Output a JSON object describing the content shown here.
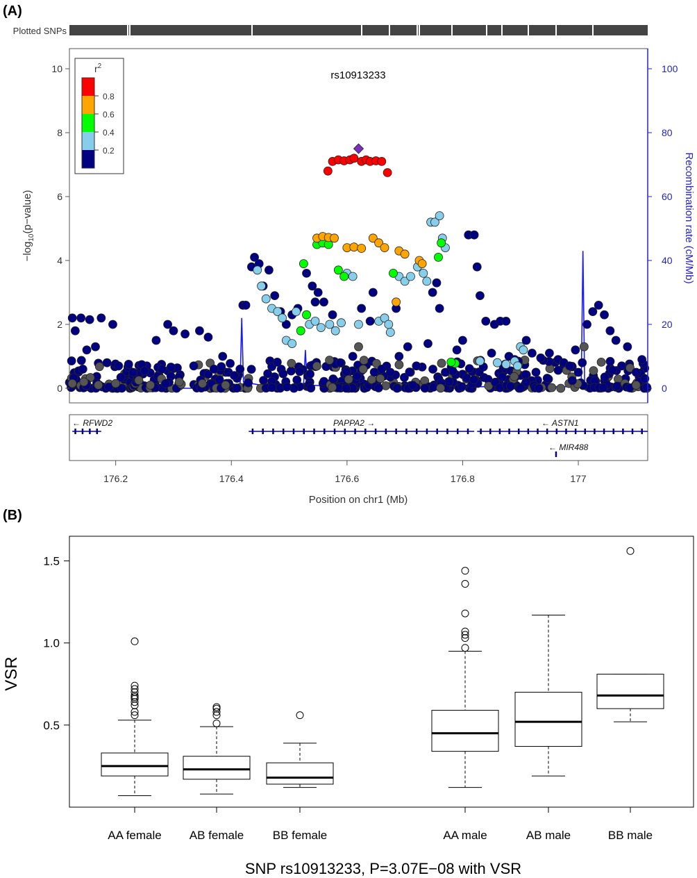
{
  "panel_a": {
    "label": "(A)",
    "plotted_snps_label": "Plotted SNPs",
    "snp_title": "rs10913233",
    "ylabel_left_pre": "−log",
    "ylabel_left_sub": "10",
    "ylabel_left_post": "(p−value)",
    "ylabel_right": "Recombination rate (cM/Mb)",
    "xlabel": "Position on chr1 (Mb)",
    "legend_title": "r",
    "legend_title_sup": "2",
    "legend_ticks": [
      "0.8",
      "0.6",
      "0.4",
      "0.2"
    ],
    "legend_colors": [
      "#ff0000",
      "#ffa500",
      "#00ff00",
      "#87ceeb",
      "#000080"
    ],
    "genes": [
      {
        "name": "RFWD2",
        "arrow": "←"
      },
      {
        "name": "PAPPA2",
        "arrow": "→"
      },
      {
        "name": "ASTN1",
        "arrow": "←"
      },
      {
        "name": "MIR488",
        "arrow": "←"
      }
    ]
  },
  "panel_b": {
    "label": "(B)",
    "ylabel": "VSR",
    "xlabel": "SNP rs10913233, P=3.07E−08 with VSR"
  },
  "chart_data": [
    {
      "type": "scatter",
      "title": "rs10913233",
      "xlabel": "Position on chr1 (Mb)",
      "ylabel": "−log10(p−value)",
      "ylabel_right": "Recombination rate (cM/Mb)",
      "xlim": [
        176.12,
        177.12
      ],
      "ylim": [
        0,
        10
      ],
      "ylim_right": [
        0,
        100
      ],
      "x_ticks": [
        "176.2",
        "176.4",
        "176.6",
        "176.8",
        "177"
      ],
      "x_tick_values": [
        176.2,
        176.4,
        176.6,
        176.8,
        177.0
      ],
      "y_ticks": [
        "0",
        "2",
        "4",
        "6",
        "8",
        "10"
      ],
      "y_right_ticks": [
        "0",
        "20",
        "40",
        "60",
        "80",
        "100"
      ],
      "legend_placement": "top-left",
      "lead_snp": {
        "x": 176.62,
        "y": 7.5
      },
      "series": [
        {
          "r2_bin": "0.8-1.0",
          "color": "#ff0000",
          "points": [
            [
              176.567,
              6.8
            ],
            [
              176.575,
              7.1
            ],
            [
              176.585,
              7.15
            ],
            [
              176.595,
              7.12
            ],
            [
              176.605,
              7.15
            ],
            [
              176.612,
              7.2
            ],
            [
              176.625,
              7.1
            ],
            [
              176.633,
              7.15
            ],
            [
              176.64,
              7.1
            ],
            [
              176.65,
              7.12
            ],
            [
              176.66,
              7.1
            ],
            [
              176.67,
              6.75
            ]
          ]
        },
        {
          "r2_bin": "0.6-0.8",
          "color": "#ffa500",
          "points": [
            [
              176.548,
              4.7
            ],
            [
              176.558,
              4.75
            ],
            [
              176.568,
              4.72
            ],
            [
              176.578,
              4.7
            ],
            [
              176.6,
              4.4
            ],
            [
              176.612,
              4.42
            ],
            [
              176.625,
              4.38
            ],
            [
              176.645,
              4.7
            ],
            [
              176.655,
              4.55
            ],
            [
              176.665,
              4.4
            ],
            [
              176.69,
              4.3
            ],
            [
              176.7,
              4.2
            ],
            [
              176.725,
              4.0
            ],
            [
              176.73,
              3.9
            ],
            [
              176.685,
              2.7
            ]
          ]
        },
        {
          "r2_bin": "0.4-0.6",
          "color": "#00ff00",
          "points": [
            [
              176.525,
              3.9
            ],
            [
              176.548,
              4.5
            ],
            [
              176.558,
              4.55
            ],
            [
              176.568,
              4.5
            ],
            [
              176.585,
              3.7
            ],
            [
              176.595,
              3.5
            ],
            [
              176.68,
              3.6
            ],
            [
              176.758,
              4.1
            ],
            [
              176.763,
              4.55
            ],
            [
              176.53,
              2.3
            ],
            [
              176.52,
              1.8
            ],
            [
              176.787,
              0.78
            ],
            [
              176.78,
              0.82
            ]
          ]
        },
        {
          "r2_bin": "0.2-0.4",
          "color": "#87ceeb",
          "points": [
            [
              176.445,
              3.7
            ],
            [
              176.452,
              3.2
            ],
            [
              176.46,
              2.8
            ],
            [
              176.47,
              2.5
            ],
            [
              176.48,
              2.4
            ],
            [
              176.488,
              2.2
            ],
            [
              176.495,
              1.5
            ],
            [
              176.505,
              1.4
            ],
            [
              176.512,
              2.4
            ],
            [
              176.535,
              2.0
            ],
            [
              176.545,
              2.1
            ],
            [
              176.555,
              1.9
            ],
            [
              176.57,
              2.0
            ],
            [
              176.58,
              1.8
            ],
            [
              176.59,
              2.05
            ],
            [
              176.6,
              3.6
            ],
            [
              176.61,
              3.5
            ],
            [
              176.62,
              2.0
            ],
            [
              176.655,
              2.1
            ],
            [
              176.665,
              2.2
            ],
            [
              176.672,
              2.0
            ],
            [
              176.675,
              1.75
            ],
            [
              176.69,
              3.5
            ],
            [
              176.7,
              3.35
            ],
            [
              176.71,
              3.5
            ],
            [
              176.722,
              3.8
            ],
            [
              176.732,
              3.6
            ],
            [
              176.738,
              3.35
            ],
            [
              176.745,
              5.2
            ],
            [
              176.752,
              5.2
            ],
            [
              176.76,
              5.4
            ],
            [
              176.765,
              4.7
            ],
            [
              176.77,
              4.4
            ],
            [
              176.83,
              0.85
            ],
            [
              176.86,
              0.8
            ],
            [
              176.875,
              0.75
            ],
            [
              176.89,
              0.85
            ],
            [
              176.895,
              0.7
            ],
            [
              176.9,
              1.3
            ],
            [
              176.905,
              1.2
            ]
          ]
        },
        {
          "r2_bin": "0.0-0.2",
          "color": "#000080",
          "points": [
            [
              176.125,
              2.2
            ],
            [
              176.13,
              1.8
            ],
            [
              176.14,
              2.2
            ],
            [
              176.15,
              1.2
            ],
            [
              176.155,
              2.15
            ],
            [
              176.165,
              1.3
            ],
            [
              176.175,
              2.2
            ],
            [
              176.185,
              0.8
            ],
            [
              176.195,
              2.0
            ],
            [
              176.205,
              0.7
            ],
            [
              176.23,
              0.5
            ],
            [
              176.25,
              0.55
            ],
            [
              176.27,
              1.5
            ],
            [
              176.28,
              0.6
            ],
            [
              176.29,
              2.0
            ],
            [
              176.3,
              1.8
            ],
            [
              176.32,
              1.7
            ],
            [
              176.335,
              0.7
            ],
            [
              176.345,
              1.8
            ],
            [
              176.36,
              1.6
            ],
            [
              176.37,
              0.6
            ],
            [
              176.385,
              1.0
            ],
            [
              176.395,
              0.5
            ],
            [
              176.405,
              0.4
            ],
            [
              176.415,
              0.6
            ],
            [
              176.42,
              2.6
            ],
            [
              176.425,
              2.6
            ],
            [
              176.435,
              3.8
            ],
            [
              176.44,
              4.1
            ],
            [
              176.448,
              3.9
            ],
            [
              176.455,
              3.2
            ],
            [
              176.465,
              3.7
            ],
            [
              176.475,
              2.9
            ],
            [
              176.485,
              2.4
            ],
            [
              176.495,
              2.0
            ],
            [
              176.505,
              2.3
            ],
            [
              176.515,
              2.5
            ],
            [
              176.53,
              3.6
            ],
            [
              176.54,
              3.2
            ],
            [
              176.545,
              2.7
            ],
            [
              176.55,
              3.0
            ],
            [
              176.56,
              2.7
            ],
            [
              176.575,
              2.3
            ],
            [
              176.61,
              1.0
            ],
            [
              176.625,
              2.5
            ],
            [
              176.64,
              2.1
            ],
            [
              176.645,
              3.0
            ],
            [
              176.66,
              0.6
            ],
            [
              176.675,
              0.5
            ],
            [
              176.685,
              2.5
            ],
            [
              176.69,
              1.0
            ],
            [
              176.705,
              1.3
            ],
            [
              176.72,
              0.7
            ],
            [
              176.74,
              1.4
            ],
            [
              176.748,
              3.0
            ],
            [
              176.755,
              3.3
            ],
            [
              176.76,
              2.5
            ],
            [
              176.77,
              0.5
            ],
            [
              176.79,
              1.2
            ],
            [
              176.8,
              1.5
            ],
            [
              176.81,
              4.8
            ],
            [
              176.82,
              4.8
            ],
            [
              176.825,
              3.8
            ],
            [
              176.83,
              2.9
            ],
            [
              176.84,
              2.1
            ],
            [
              176.85,
              1.1
            ],
            [
              176.855,
              2.0
            ],
            [
              176.865,
              2.1
            ],
            [
              176.875,
              2.1
            ],
            [
              176.88,
              1.0
            ],
            [
              176.89,
              0.9
            ],
            [
              176.91,
              1.5
            ],
            [
              176.92,
              1.1
            ],
            [
              176.935,
              0.95
            ],
            [
              176.95,
              1.1
            ],
            [
              176.965,
              0.9
            ],
            [
              176.975,
              0.8
            ],
            [
              176.985,
              0.7
            ],
            [
              176.995,
              1.2
            ],
            [
              177.0,
              0.5
            ],
            [
              177.015,
              2.0
            ],
            [
              177.025,
              2.4
            ],
            [
              177.035,
              2.6
            ],
            [
              177.045,
              2.3
            ],
            [
              177.055,
              1.8
            ],
            [
              177.065,
              1.5
            ],
            [
              177.075,
              0.7
            ],
            [
              177.085,
              1.3
            ],
            [
              177.1,
              0.5
            ],
            [
              177.11,
              0.9
            ],
            [
              177.115,
              0.3
            ]
          ]
        },
        {
          "r2_bin": "NA",
          "color": "#555555",
          "points": [
            [
              176.125,
              0.15
            ],
            [
              176.145,
              0.2
            ],
            [
              176.17,
              0.1
            ],
            [
              176.2,
              0.15
            ],
            [
              176.24,
              0.25
            ],
            [
              176.26,
              0.1
            ],
            [
              176.31,
              0.2
            ],
            [
              176.35,
              0.15
            ],
            [
              176.39,
              0.1
            ],
            [
              176.62,
              1.3
            ],
            [
              177.01,
              1.3
            ],
            [
              177.1,
              0.1
            ]
          ]
        }
      ],
      "recombination_peaks": [
        [
          176.12,
          0
        ],
        [
          176.415,
          0
        ],
        [
          176.418,
          22
        ],
        [
          176.421,
          2
        ],
        [
          176.45,
          1
        ],
        [
          176.47,
          0.5
        ],
        [
          176.525,
          1.5
        ],
        [
          176.528,
          12
        ],
        [
          176.531,
          1
        ],
        [
          176.6,
          0.5
        ],
        [
          176.615,
          0.5
        ],
        [
          176.618,
          8
        ],
        [
          176.621,
          0.3
        ],
        [
          176.7,
          0.5
        ],
        [
          176.8,
          0.5
        ],
        [
          176.9,
          0.5
        ],
        [
          177.005,
          0.5
        ],
        [
          177.008,
          43
        ],
        [
          177.011,
          1
        ],
        [
          177.12,
          0.5
        ]
      ],
      "genes": [
        {
          "name": "RFWD2",
          "start": 176.125,
          "end": 176.175,
          "strand": "-",
          "row": 1
        },
        {
          "name": "PAPPA2",
          "start": 176.43,
          "end": 176.82,
          "strand": "+",
          "row": 1
        },
        {
          "name": "ASTN1",
          "start": 176.825,
          "end": 177.12,
          "strand": "-",
          "row": 1
        },
        {
          "name": "MIR488",
          "start": 176.96,
          "end": 176.962,
          "strand": "-",
          "row": 2
        }
      ]
    },
    {
      "type": "box",
      "xlabel": "SNP rs10913233, P=3.07E−08 with VSR",
      "ylabel": "VSR",
      "y_ticks": [
        "0.5",
        "1.0",
        "1.5"
      ],
      "y_tick_values": [
        0.5,
        1.0,
        1.5
      ],
      "ylim": [
        0.0,
        1.65
      ],
      "categories": [
        "AA female",
        "AB female",
        "BB female",
        "AA male",
        "AB male",
        "BB male"
      ],
      "boxes": [
        {
          "whisker_low": 0.07,
          "q1": 0.19,
          "median": 0.25,
          "q3": 0.33,
          "whisker_high": 0.53,
          "outliers": [
            0.56,
            0.58,
            0.62,
            0.64,
            0.66,
            0.67,
            0.68,
            0.7,
            0.72,
            0.74,
            1.01
          ]
        },
        {
          "whisker_low": 0.08,
          "q1": 0.17,
          "median": 0.23,
          "q3": 0.31,
          "whisker_high": 0.49,
          "outliers": [
            0.51,
            0.56,
            0.58,
            0.6,
            0.61
          ]
        },
        {
          "whisker_low": 0.12,
          "q1": 0.14,
          "median": 0.18,
          "q3": 0.27,
          "whisker_high": 0.39,
          "outliers": [
            0.56
          ]
        },
        {
          "whisker_low": 0.12,
          "q1": 0.34,
          "median": 0.45,
          "q3": 0.59,
          "whisker_high": 0.95,
          "outliers": [
            0.97,
            1.03,
            1.05,
            1.07,
            1.18,
            1.36,
            1.44
          ]
        },
        {
          "whisker_low": 0.19,
          "q1": 0.37,
          "median": 0.52,
          "q3": 0.7,
          "whisker_high": 1.17,
          "outliers": []
        },
        {
          "whisker_low": 0.52,
          "q1": 0.6,
          "median": 0.68,
          "q3": 0.81,
          "whisker_high": 0.81,
          "outliers": [
            1.56
          ]
        }
      ]
    }
  ]
}
